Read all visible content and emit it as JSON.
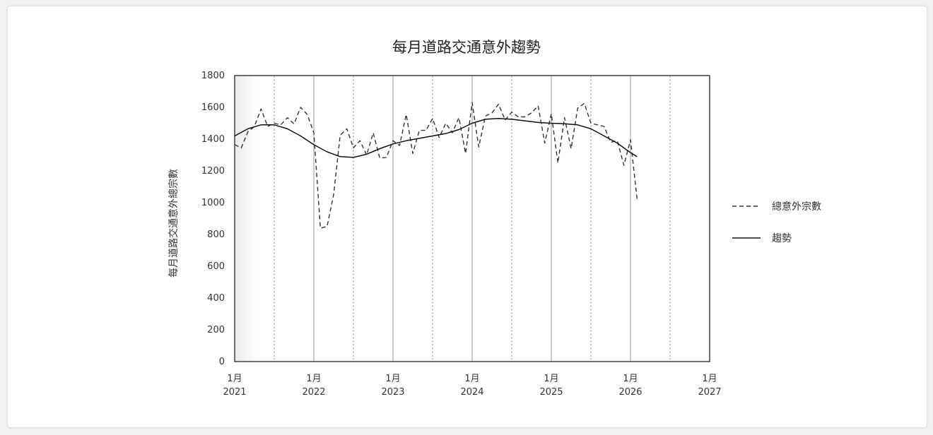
{
  "chart_data": {
    "type": "line",
    "title": "每月道路交通意外趨勢",
    "xlabel": "",
    "ylabel": "每月道路交通意外總宗數",
    "ylim": [
      0,
      1800
    ],
    "yticks": [
      0,
      200,
      400,
      600,
      800,
      1000,
      1200,
      1400,
      1600,
      1800
    ],
    "xlim": [
      "2021-01",
      "2027-01"
    ],
    "xticks": [
      {
        "month": "1月",
        "year": "2021",
        "date": "2021-01"
      },
      {
        "month": "1月",
        "year": "2022",
        "date": "2022-01"
      },
      {
        "month": "1月",
        "year": "2023",
        "date": "2023-01"
      },
      {
        "month": "1月",
        "year": "2024",
        "date": "2024-01"
      },
      {
        "month": "1月",
        "year": "2025",
        "date": "2025-01"
      },
      {
        "month": "1月",
        "year": "2026",
        "date": "2026-01"
      },
      {
        "month": "1月",
        "year": "2027",
        "date": "2027-01"
      }
    ],
    "legend_position": "right",
    "grid": "vertical lines at each January (solid) and July (dashed)",
    "series": [
      {
        "name": "總意外宗數",
        "style": "dashed",
        "color": "#333333",
        "x": [
          "2021-01",
          "2021-02",
          "2021-03",
          "2021-04",
          "2021-05",
          "2021-06",
          "2021-07",
          "2021-08",
          "2021-09",
          "2021-10",
          "2021-11",
          "2021-12",
          "2022-01",
          "2022-02",
          "2022-03",
          "2022-04",
          "2022-05",
          "2022-06",
          "2022-07",
          "2022-08",
          "2022-09",
          "2022-10",
          "2022-11",
          "2022-12",
          "2023-01",
          "2023-02",
          "2023-03",
          "2023-04",
          "2023-05",
          "2023-06",
          "2023-07",
          "2023-08",
          "2023-09",
          "2023-10",
          "2023-11",
          "2023-12",
          "2024-01",
          "2024-02",
          "2024-03",
          "2024-04",
          "2024-05",
          "2024-06",
          "2024-07",
          "2024-08",
          "2024-09",
          "2024-10",
          "2024-11",
          "2024-12",
          "2025-01",
          "2025-02",
          "2025-03",
          "2025-04",
          "2025-05",
          "2025-06",
          "2025-07",
          "2025-08",
          "2025-09",
          "2025-10",
          "2025-11",
          "2025-12",
          "2026-01",
          "2026-02"
        ],
        "y": [
          1365,
          1345,
          1445,
          1480,
          1590,
          1480,
          1500,
          1490,
          1535,
          1495,
          1600,
          1555,
          1440,
          840,
          850,
          1050,
          1425,
          1465,
          1345,
          1390,
          1300,
          1440,
          1280,
          1285,
          1390,
          1360,
          1555,
          1310,
          1455,
          1455,
          1530,
          1410,
          1500,
          1440,
          1535,
          1310,
          1630,
          1350,
          1545,
          1565,
          1620,
          1520,
          1570,
          1540,
          1540,
          1565,
          1610,
          1375,
          1560,
          1250,
          1535,
          1340,
          1595,
          1625,
          1500,
          1490,
          1480,
          1380,
          1390,
          1235,
          1395,
          1025
        ]
      },
      {
        "name": "趨勢",
        "style": "solid",
        "color": "#111111",
        "x": [
          "2021-01",
          "2021-03",
          "2021-05",
          "2021-07",
          "2021-09",
          "2021-11",
          "2022-01",
          "2022-03",
          "2022-05",
          "2022-07",
          "2022-09",
          "2022-11",
          "2023-01",
          "2023-03",
          "2023-05",
          "2023-07",
          "2023-09",
          "2023-11",
          "2024-01",
          "2024-03",
          "2024-05",
          "2024-07",
          "2024-09",
          "2024-11",
          "2025-01",
          "2025-03",
          "2025-05",
          "2025-07",
          "2025-09",
          "2025-11",
          "2026-01",
          "2026-02"
        ],
        "y": [
          1420,
          1465,
          1490,
          1490,
          1465,
          1420,
          1365,
          1320,
          1290,
          1285,
          1305,
          1340,
          1370,
          1390,
          1405,
          1420,
          1435,
          1460,
          1500,
          1525,
          1530,
          1525,
          1515,
          1505,
          1500,
          1497,
          1490,
          1465,
          1420,
          1375,
          1315,
          1290
        ]
      }
    ]
  }
}
